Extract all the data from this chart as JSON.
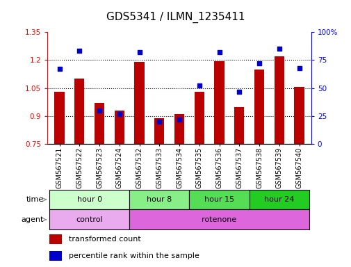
{
  "title": "GDS5341 / ILMN_1235411",
  "samples": [
    "GSM567521",
    "GSM567522",
    "GSM567523",
    "GSM567524",
    "GSM567532",
    "GSM567533",
    "GSM567534",
    "GSM567535",
    "GSM567536",
    "GSM567537",
    "GSM567538",
    "GSM567539",
    "GSM567540"
  ],
  "transformed_count": [
    1.03,
    1.1,
    0.97,
    0.93,
    1.19,
    0.89,
    0.91,
    1.03,
    1.195,
    0.95,
    1.15,
    1.22,
    1.055
  ],
  "percentile_rank": [
    67,
    83,
    30,
    27,
    82,
    20,
    22,
    52,
    82,
    47,
    72,
    85,
    68
  ],
  "ymin": 0.75,
  "ymax": 1.35,
  "yticks": [
    0.75,
    0.9,
    1.05,
    1.2,
    1.35
  ],
  "ytick_labels": [
    "0.75",
    "0.9",
    "1.05",
    "1.2",
    "1.35"
  ],
  "y2min": 0,
  "y2max": 100,
  "y2ticks": [
    0,
    25,
    50,
    75,
    100
  ],
  "y2tick_labels": [
    "0",
    "25",
    "50",
    "75",
    "100%"
  ],
  "bar_color": "#BB0000",
  "dot_color": "#0000CC",
  "bar_bottom": 0.75,
  "time_groups": [
    {
      "label": "hour 0",
      "start": 0,
      "end": 4,
      "color": "#CCFFCC"
    },
    {
      "label": "hour 8",
      "start": 4,
      "end": 7,
      "color": "#88EE88"
    },
    {
      "label": "hour 15",
      "start": 7,
      "end": 10,
      "color": "#55DD55"
    },
    {
      "label": "hour 24",
      "start": 10,
      "end": 13,
      "color": "#22CC22"
    }
  ],
  "agent_groups": [
    {
      "label": "control",
      "start": 0,
      "end": 4,
      "color": "#EAAAEE"
    },
    {
      "label": "rotenone",
      "start": 4,
      "end": 13,
      "color": "#DD66DD"
    }
  ],
  "time_label": "time",
  "agent_label": "agent",
  "legend_bar_label": "transformed count",
  "legend_dot_label": "percentile rank within the sample",
  "grid_color": "black",
  "title_fontsize": 11,
  "tick_fontsize": 7.5,
  "sample_fontsize": 7,
  "row_fontsize": 8
}
